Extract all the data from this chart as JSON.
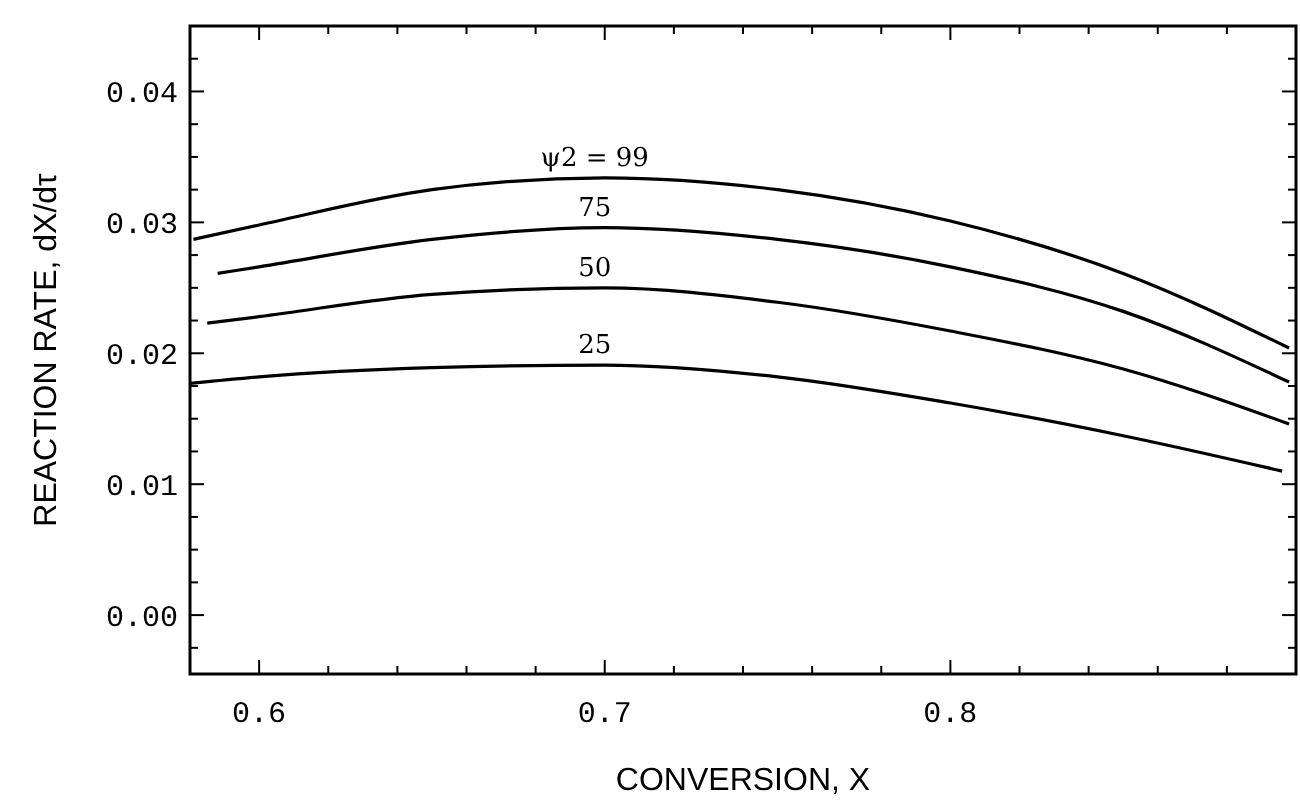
{
  "chart_data": {
    "type": "line",
    "xlabel": "CONVERSION, X",
    "ylabel": "REACTION RATE, dX/dτ",
    "xlim": [
      0.58,
      0.9
    ],
    "ylim": [
      -0.0045,
      0.045
    ],
    "xticks": [
      0.6,
      {
        "value": 0.62,
        "label": null
      },
      {
        "value": 0.64,
        "label": null
      },
      {
        "value": 0.66,
        "label": null
      },
      {
        "value": 0.68,
        "label": null
      },
      0.7,
      {
        "value": 0.72,
        "label": null
      },
      {
        "value": 0.74,
        "label": null
      },
      {
        "value": 0.76,
        "label": null
      },
      {
        "value": 0.78,
        "label": null
      },
      0.8,
      {
        "value": 0.82,
        "label": null
      },
      {
        "value": 0.84,
        "label": null
      },
      {
        "value": 0.86,
        "label": null
      },
      {
        "value": 0.88,
        "label": null
      }
    ],
    "yticks": [
      {
        "value": -0.0025,
        "label": null
      },
      {
        "value": 0,
        "label": "0.00"
      },
      {
        "value": 0.0025,
        "label": null
      },
      {
        "value": 0.005,
        "label": null
      },
      {
        "value": 0.0075,
        "label": null
      },
      {
        "value": 0.01,
        "label": "0.01"
      },
      {
        "value": 0.0125,
        "label": null
      },
      {
        "value": 0.015,
        "label": null
      },
      {
        "value": 0.0175,
        "label": null
      },
      {
        "value": 0.02,
        "label": "0.02"
      },
      {
        "value": 0.0225,
        "label": null
      },
      {
        "value": 0.025,
        "label": null
      },
      {
        "value": 0.0275,
        "label": null
      },
      {
        "value": 0.03,
        "label": "0.03"
      },
      {
        "value": 0.0325,
        "label": null
      },
      {
        "value": 0.035,
        "label": null
      },
      {
        "value": 0.0375,
        "label": null
      },
      {
        "value": 0.04,
        "label": "0.04"
      },
      {
        "value": 0.0425,
        "label": null
      }
    ],
    "grid": false,
    "marker": "none",
    "line_style": "solid",
    "series": [
      {
        "name": "ψ2 = 99",
        "color": "#000000",
        "x": [
          0.581,
          0.6,
          0.65,
          0.7,
          0.75,
          0.8,
          0.85,
          0.898
        ],
        "values": [
          0.0287,
          0.0298,
          0.0325,
          0.0334,
          0.0325,
          0.0301,
          0.0261,
          0.0204
        ]
      },
      {
        "name": "75",
        "color": "#000000",
        "x": [
          0.588,
          0.6,
          0.65,
          0.7,
          0.75,
          0.8,
          0.85,
          0.898
        ],
        "values": [
          0.0261,
          0.0266,
          0.0287,
          0.0296,
          0.0287,
          0.0266,
          0.0232,
          0.0178
        ]
      },
      {
        "name": "50",
        "color": "#000000",
        "x": [
          0.585,
          0.6,
          0.65,
          0.7,
          0.75,
          0.8,
          0.85,
          0.898
        ],
        "values": [
          0.0223,
          0.0228,
          0.0245,
          0.025,
          0.0239,
          0.0217,
          0.0188,
          0.0146
        ]
      },
      {
        "name": "25",
        "color": "#000000",
        "x": [
          0.58,
          0.6,
          0.65,
          0.7,
          0.75,
          0.8,
          0.85,
          0.896
        ],
        "values": [
          0.0177,
          0.0182,
          0.0189,
          0.0191,
          0.0182,
          0.0162,
          0.0137,
          0.011
        ]
      }
    ]
  }
}
